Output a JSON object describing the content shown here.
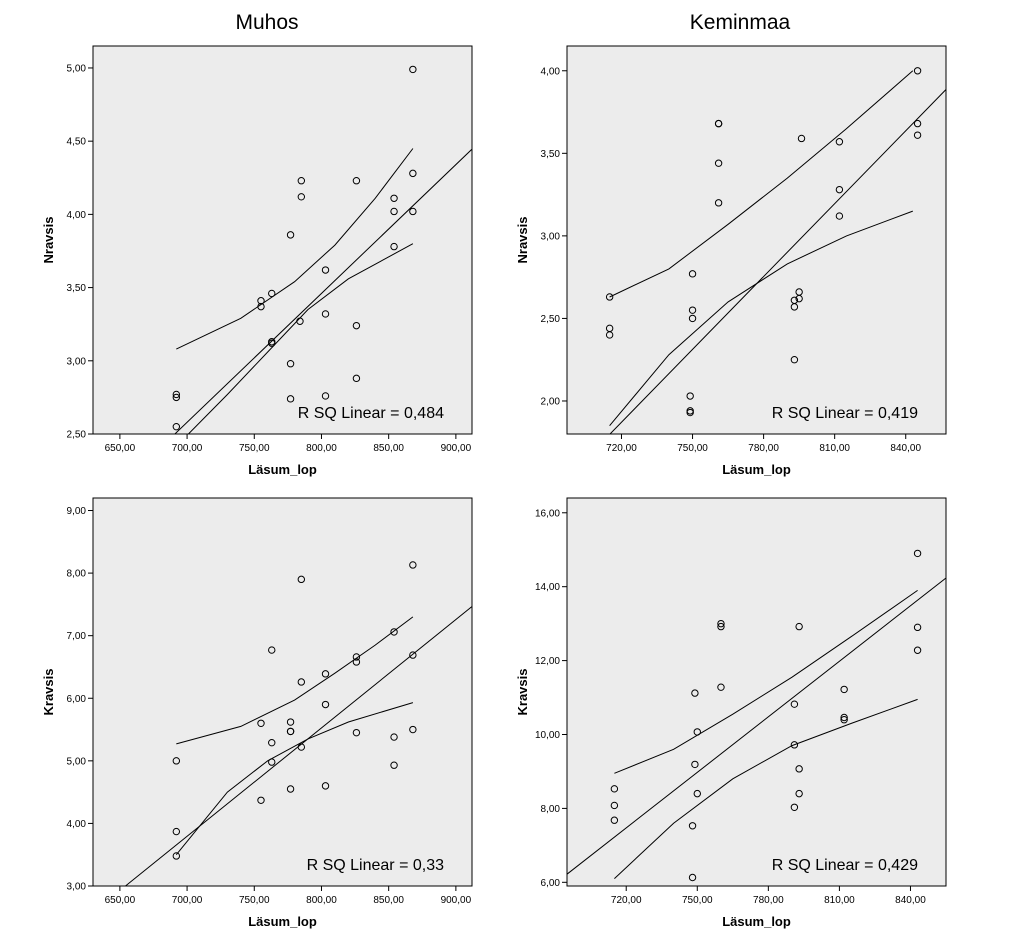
{
  "column_titles": [
    "Muhos",
    "Keminmaa"
  ],
  "chart_data": [
    {
      "type": "scatter",
      "title": "Muhos",
      "xlabel": "Läsum_lop",
      "ylabel": "Nravsis",
      "xlim": [
        630,
        912
      ],
      "ylim": [
        2.5,
        5.15
      ],
      "xticks": [
        650,
        700,
        750,
        800,
        850,
        900
      ],
      "xtick_labels": [
        "650,00",
        "700,00",
        "750,00",
        "800,00",
        "850,00",
        "900,00"
      ],
      "yticks": [
        2.5,
        3.0,
        3.5,
        4.0,
        4.5,
        5.0
      ],
      "ytick_labels": [
        "2,50",
        "3,00",
        "3,50",
        "4,00",
        "4,50",
        "5,00"
      ],
      "grid": false,
      "annotation": "R SQ Linear = 0,484",
      "fit": {
        "intercept": -3.58,
        "slope": 0.0088,
        "ci": [
          [
            692,
            3.08
          ],
          [
            740,
            3.29
          ],
          [
            780,
            3.54
          ],
          [
            810,
            3.79
          ],
          [
            840,
            4.11
          ],
          [
            868,
            4.45
          ]
        ],
        "ci_lower": [
          [
            701,
            2.5
          ],
          [
            730,
            2.77
          ],
          [
            760,
            3.06
          ],
          [
            790,
            3.35
          ],
          [
            820,
            3.56
          ],
          [
            868,
            3.8
          ]
        ]
      },
      "series": [
        {
          "x": [
            692,
            692,
            692,
            755,
            755,
            763,
            763,
            763,
            777,
            777,
            777,
            784,
            785,
            785,
            803,
            803,
            803,
            826,
            826,
            826,
            854,
            854,
            854,
            868,
            868,
            868
          ],
          "y": [
            2.55,
            2.75,
            2.77,
            3.37,
            3.41,
            3.12,
            3.13,
            3.46,
            2.74,
            2.98,
            3.86,
            3.27,
            4.12,
            4.23,
            2.76,
            3.32,
            3.62,
            2.88,
            3.24,
            4.23,
            3.78,
            4.02,
            4.11,
            4.02,
            4.28,
            4.99
          ]
        }
      ]
    },
    {
      "type": "scatter",
      "title": "Keminmaa",
      "xlabel": "Läsum_lop",
      "ylabel": "Nravsis",
      "xlim": [
        697,
        857
      ],
      "ylim": [
        1.8,
        4.15
      ],
      "xticks": [
        720,
        750,
        780,
        810,
        840
      ],
      "xtick_labels": [
        "720,00",
        "750,00",
        "780,00",
        "810,00",
        "840,00"
      ],
      "yticks": [
        2.0,
        2.5,
        3.0,
        3.5,
        4.0
      ],
      "ytick_labels": [
        "2,00",
        "2,50",
        "3,00",
        "3,50",
        "4,00"
      ],
      "grid": false,
      "annotation": "R SQ Linear = 0,419",
      "fit": {
        "intercept": -8.72,
        "slope": 0.01471,
        "ci": [
          [
            715,
            2.63
          ],
          [
            740,
            2.8
          ],
          [
            765,
            3.07
          ],
          [
            790,
            3.35
          ],
          [
            815,
            3.65
          ],
          [
            843,
            4.0
          ]
        ],
        "ci_lower": [
          [
            715,
            1.85
          ],
          [
            740,
            2.28
          ],
          [
            765,
            2.6
          ],
          [
            790,
            2.83
          ],
          [
            815,
            3.0
          ],
          [
            843,
            3.15
          ]
        ]
      },
      "series": [
        {
          "x": [
            715,
            715,
            715,
            749,
            749,
            749,
            750,
            750,
            750,
            761,
            761,
            761,
            761,
            793,
            793,
            793,
            795,
            795,
            796,
            812,
            812,
            812,
            845,
            845,
            845
          ],
          "y": [
            2.4,
            2.44,
            2.63,
            1.93,
            1.94,
            2.03,
            2.5,
            2.55,
            2.77,
            3.2,
            3.44,
            3.68,
            3.68,
            2.25,
            2.57,
            2.61,
            2.62,
            2.66,
            3.59,
            3.12,
            3.28,
            3.57,
            3.61,
            3.68,
            4.0
          ]
        }
      ]
    },
    {
      "type": "scatter",
      "title": "",
      "xlabel": "Läsum_lop",
      "ylabel": "Kravsis",
      "xlim": [
        630,
        912
      ],
      "ylim": [
        3.0,
        9.2
      ],
      "xticks": [
        650,
        700,
        750,
        800,
        850,
        900
      ],
      "xtick_labels": [
        "650,00",
        "700,00",
        "750,00",
        "800,00",
        "850,00",
        "900,00"
      ],
      "yticks": [
        3,
        4,
        5,
        6,
        7,
        8,
        9
      ],
      "ytick_labels": [
        "3,00",
        "4,00",
        "5,00",
        "6,00",
        "7,00",
        "8,00",
        "9,00"
      ],
      "grid": false,
      "annotation": "R SQ Linear = 0,33",
      "fit": {
        "intercept": -8.33,
        "slope": 0.01732,
        "ci": [
          [
            692,
            5.27
          ],
          [
            740,
            5.55
          ],
          [
            780,
            5.97
          ],
          [
            810,
            6.4
          ],
          [
            840,
            6.85
          ],
          [
            868,
            7.3
          ]
        ],
        "ci_lower": [
          [
            692,
            3.5
          ],
          [
            730,
            4.5
          ],
          [
            760,
            5.0
          ],
          [
            790,
            5.35
          ],
          [
            820,
            5.62
          ],
          [
            868,
            5.93
          ]
        ]
      },
      "series": [
        {
          "x": [
            692,
            692,
            692,
            755,
            755,
            763,
            763,
            763,
            777,
            777,
            777,
            777,
            785,
            785,
            785,
            803,
            803,
            803,
            826,
            826,
            826,
            854,
            854,
            854,
            868,
            868,
            868
          ],
          "y": [
            3.48,
            3.87,
            5.0,
            4.37,
            5.6,
            4.98,
            5.29,
            6.77,
            4.55,
            5.47,
            5.47,
            5.62,
            5.22,
            6.26,
            7.9,
            4.6,
            5.9,
            6.39,
            5.45,
            6.58,
            6.66,
            4.93,
            5.38,
            7.06,
            5.5,
            6.69,
            8.13
          ]
        }
      ]
    },
    {
      "type": "scatter",
      "title": "",
      "xlabel": "Läsum_lop",
      "ylabel": "Kravsis",
      "xlim": [
        695,
        855
      ],
      "ylim": [
        5.9,
        16.4
      ],
      "xticks": [
        720,
        750,
        780,
        810,
        840
      ],
      "xtick_labels": [
        "720,00",
        "750,00",
        "780,00",
        "810,00",
        "840,00"
      ],
      "yticks": [
        6,
        8,
        10,
        12,
        14,
        16
      ],
      "ytick_labels": [
        "6,00",
        "8,00",
        "10,00",
        "12,00",
        "14,00",
        "16,00"
      ],
      "grid": false,
      "annotation": "R SQ Linear = 0,429",
      "fit": {
        "intercept": -28.6,
        "slope": 0.0501,
        "ci": [
          [
            715,
            8.95
          ],
          [
            740,
            9.6
          ],
          [
            765,
            10.55
          ],
          [
            790,
            11.55
          ],
          [
            815,
            12.65
          ],
          [
            843,
            13.9
          ]
        ],
        "ci_lower": [
          [
            715,
            6.1
          ],
          [
            740,
            7.6
          ],
          [
            765,
            8.8
          ],
          [
            790,
            9.7
          ],
          [
            815,
            10.3
          ],
          [
            843,
            10.95
          ]
        ]
      },
      "series": [
        {
          "x": [
            715,
            715,
            715,
            748,
            748,
            749,
            749,
            750,
            750,
            760,
            760,
            760,
            791,
            791,
            791,
            793,
            793,
            793,
            812,
            812,
            812,
            843,
            843,
            843
          ],
          "y": [
            7.68,
            8.08,
            8.53,
            6.13,
            7.53,
            9.19,
            11.12,
            8.4,
            10.07,
            11.28,
            13.0,
            12.92,
            8.03,
            9.72,
            10.82,
            8.4,
            9.07,
            12.92,
            10.4,
            10.46,
            11.22,
            12.28,
            12.9,
            14.9
          ]
        }
      ]
    }
  ]
}
